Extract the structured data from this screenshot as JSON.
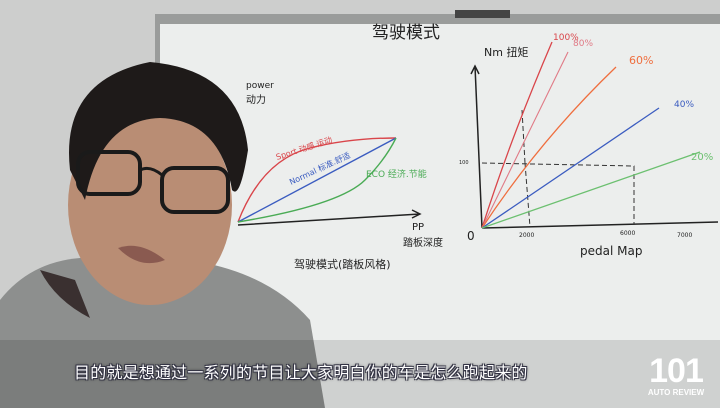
{
  "whiteboard": {
    "title": "驾驶模式",
    "left_diagram": {
      "y_label_en": "power",
      "y_label_cn": "动力",
      "curves": [
        {
          "label": "Sport 动感.运动",
          "color": "#d9454a"
        },
        {
          "label": "Normal 标准.舒适",
          "color": "#3b5cc0"
        },
        {
          "label": "ECO 经济.节能",
          "color": "#4aab55"
        }
      ],
      "x_label_en": "PP",
      "x_label_cn": "踏板深度",
      "caption": "驾驶模式(踏板风格)"
    },
    "right_diagram": {
      "y_label": "Nm 扭矩",
      "origin": "0",
      "y_mark": "100",
      "x_ticks": [
        "2000",
        "6000",
        "7000"
      ],
      "x_label": "pedal Map",
      "lines": [
        {
          "label": "100%",
          "color": "#d9454a"
        },
        {
          "label": "80%",
          "color": "#e07a86"
        },
        {
          "label": "60%",
          "color": "#ef6e3e"
        },
        {
          "label": "40%",
          "color": "#3b5cc0"
        },
        {
          "label": "20%",
          "color": "#6cc070"
        }
      ]
    }
  },
  "subtitle": "目的就是想通过一系列的节目让大家明白你的车是怎么跑起来的",
  "logo": {
    "number": "101",
    "text": "AUTO REVIEW"
  }
}
